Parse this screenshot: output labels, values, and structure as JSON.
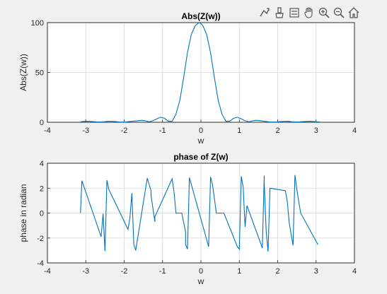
{
  "toolbar": {
    "items": [
      {
        "icon": "data-tips-icon"
      },
      {
        "icon": "brush-icon"
      },
      {
        "icon": "insert-legend-icon"
      },
      {
        "icon": "pan-hand-icon"
      },
      {
        "icon": "zoom-in-icon"
      },
      {
        "icon": "zoom-out-icon"
      },
      {
        "icon": "home-icon"
      }
    ]
  },
  "colors": {
    "line": "#0072bd",
    "background": "#f0f0f0",
    "axes": "#ffffff",
    "grid": "#dfdfdf"
  },
  "chart_data": [
    {
      "type": "line",
      "title": "Abs(Z(w))",
      "xlabel": "w",
      "ylabel": "Abs(Z(w))",
      "xlim": [
        -4,
        4
      ],
      "ylim": [
        0,
        100
      ],
      "xticks": [
        "-4",
        "-3",
        "-2",
        "-1",
        "0",
        "1",
        "2",
        "3",
        "4"
      ],
      "yticks": [
        "0",
        "50",
        "100"
      ],
      "grid": true,
      "series": [
        {
          "x": [
            -3.14,
            -3.0,
            -2.85,
            -2.7,
            -2.55,
            -2.4,
            -2.25,
            -2.1,
            -1.95,
            -1.8,
            -1.65,
            -1.55,
            -1.45,
            -1.35,
            -1.25,
            -1.15,
            -1.05,
            -0.95,
            -0.85,
            -0.75,
            -0.65,
            -0.55,
            -0.45,
            -0.35,
            -0.25,
            -0.15,
            -0.05,
            0.0,
            0.05,
            0.15,
            0.25,
            0.35,
            0.45,
            0.55,
            0.65,
            0.75,
            0.85,
            0.95,
            1.05,
            1.15,
            1.25,
            1.35,
            1.45,
            1.55,
            1.65,
            1.8,
            1.95,
            2.1,
            2.25,
            2.4,
            2.55,
            2.7,
            2.85,
            3.0,
            3.1
          ],
          "y": [
            0.5,
            1.0,
            0.8,
            0.3,
            0.4,
            1.0,
            0.8,
            0.2,
            0.3,
            1.0,
            1.5,
            2.0,
            1.5,
            0.5,
            1.5,
            3.5,
            5.0,
            4.0,
            1.0,
            1.0,
            8.0,
            22.0,
            45.0,
            70.0,
            88.0,
            97.0,
            100.0,
            99.0,
            97.0,
            88.0,
            70.0,
            45.0,
            22.0,
            8.0,
            1.0,
            1.0,
            4.0,
            5.0,
            3.5,
            1.5,
            0.5,
            1.5,
            2.0,
            1.5,
            1.0,
            0.3,
            0.2,
            0.8,
            1.0,
            0.4,
            0.3,
            0.8,
            1.0,
            0.5,
            0.3
          ]
        }
      ]
    },
    {
      "type": "line",
      "title": "phase of Z(w)",
      "xlabel": "w",
      "ylabel": "phase in radian",
      "xlim": [
        -4,
        4
      ],
      "ylim": [
        -4,
        4
      ],
      "xticks": [
        "-4",
        "-3",
        "-2",
        "-1",
        "0",
        "1",
        "2",
        "3",
        "4"
      ],
      "yticks": [
        "-4",
        "-2",
        "0",
        "2",
        "4"
      ],
      "grid": true,
      "series": [
        {
          "x": [
            -3.14,
            -3.1,
            -2.6,
            -2.55,
            -2.5,
            -2.45,
            -2.4,
            -1.9,
            -1.85,
            -1.8,
            -1.75,
            -1.7,
            -1.4,
            -1.3,
            -1.3,
            -1.2,
            -1.2,
            -0.75,
            -0.7,
            -0.65,
            -0.6,
            -0.5,
            -0.4,
            -0.4,
            -0.35,
            -0.3,
            0.2,
            0.25,
            0.3,
            0.35,
            0.4,
            0.6,
            0.95,
            1.0,
            1.05,
            1.1,
            1.15,
            1.2,
            1.6,
            1.65,
            1.65,
            1.7,
            1.75,
            1.8,
            2.2,
            2.25,
            2.3,
            2.4,
            2.45,
            2.5,
            2.55,
            2.6,
            3.05
          ],
          "y": [
            0.0,
            2.6,
            -1.9,
            -0.05,
            -3.05,
            2.65,
            1.9,
            -1.3,
            -0.4,
            1.6,
            -2.5,
            -3.0,
            2.8,
            1.8,
            1.4,
            -0.7,
            -0.3,
            2.75,
            1.7,
            0.0,
            0.0,
            0.0,
            -1.5,
            -2.5,
            -2.9,
            2.85,
            -2.7,
            2.9,
            2.3,
            1.2,
            0.0,
            0.0,
            -2.7,
            -2.9,
            2.95,
            2.1,
            -1.1,
            0.6,
            -2.8,
            3.0,
            2.4,
            -1.4,
            -3.1,
            2.0,
            1.8,
            0.9,
            -0.8,
            -2.6,
            3.05,
            1.9,
            0.9,
            0.0,
            -2.55
          ]
        }
      ]
    }
  ]
}
